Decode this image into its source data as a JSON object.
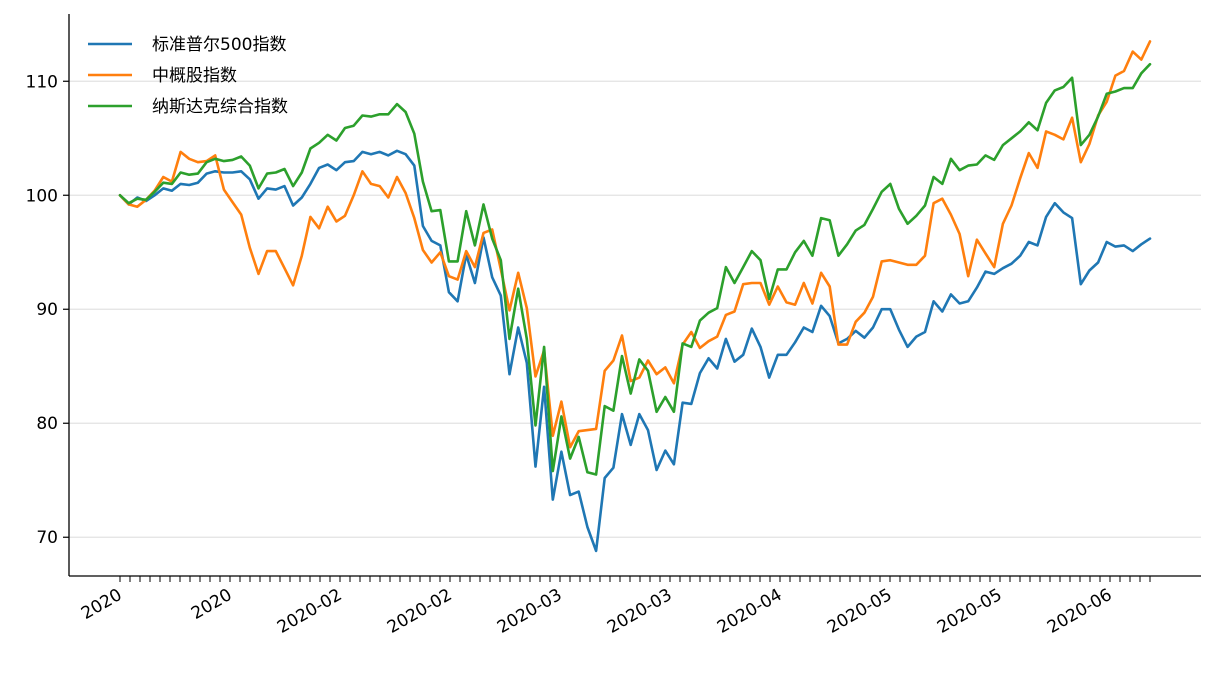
{
  "chart_data": {
    "type": "line",
    "title": "",
    "xlabel": "",
    "ylabel": "",
    "ylim": [
      66.6,
      115.9
    ],
    "yticks": [
      70,
      80,
      90,
      100,
      110
    ],
    "grid": "horizontal",
    "legend_position": "top-left",
    "x_major_labels": [
      "2020",
      "2020",
      "2020-02",
      "2020-02",
      "2020-03",
      "2020-03",
      "2020-04",
      "2020-05",
      "2020-05",
      "2020-06"
    ],
    "x_minor_tick_count": 104,
    "series": [
      {
        "name": "标准普尔500指数",
        "color": "#1f77b4",
        "values": [
          100,
          99.2,
          99.8,
          99.5,
          100,
          100.6,
          100.4,
          101,
          100.9,
          101.1,
          101.9,
          102.1,
          102,
          102,
          102.1,
          101.4,
          99.7,
          100.6,
          100.5,
          100.8,
          99.1,
          99.8,
          101,
          102.4,
          102.7,
          102.2,
          102.9,
          103,
          103.8,
          103.6,
          103.8,
          103.5,
          103.9,
          103.6,
          102.6,
          97.3,
          96,
          95.6,
          91.5,
          90.7,
          94.8,
          92.3,
          96.3,
          92.8,
          91.2,
          84.3,
          88.4,
          85.3,
          76.2,
          83.2,
          73.3,
          77.5,
          73.7,
          74,
          70.9,
          68.8,
          75.2,
          76.1,
          80.8,
          78.1,
          80.8,
          79.4,
          75.9,
          77.6,
          76.4,
          81.8,
          81.7,
          84.4,
          85.7,
          84.8,
          87.4,
          85.4,
          86,
          88.3,
          86.7,
          84,
          86,
          86,
          87.1,
          88.4,
          88,
          90.3,
          89.4,
          87,
          87.4,
          88.1,
          87.5,
          88.4,
          90,
          90,
          88.2,
          86.7,
          87.6,
          88,
          90.7,
          89.8,
          91.3,
          90.5,
          90.7,
          91.9,
          93.3,
          93.1,
          93.6,
          94,
          94.7,
          95.9,
          95.6,
          98.1,
          99.3,
          98.5,
          98,
          92.2,
          93.4,
          94.1,
          95.9,
          95.5,
          95.6,
          95.1,
          95.7,
          96.2
        ]
      },
      {
        "name": "中概股指数",
        "color": "#ff7f0e",
        "values": [
          100,
          99.2,
          99,
          99.6,
          100.4,
          101.6,
          101.2,
          103.8,
          103.2,
          102.9,
          103,
          103.5,
          100.5,
          99.4,
          98.3,
          95.4,
          93.1,
          95.1,
          95.1,
          93.6,
          92.1,
          94.7,
          98.1,
          97.1,
          99,
          97.7,
          98.2,
          100,
          102.1,
          101,
          100.8,
          99.8,
          101.6,
          100.2,
          98,
          95.2,
          94.1,
          95,
          92.9,
          92.6,
          95.1,
          93.7,
          96.7,
          97,
          93.5,
          89.9,
          93.2,
          90.1,
          84.1,
          86.4,
          78.9,
          81.9,
          77.9,
          79.3,
          79.4,
          79.5,
          84.6,
          85.5,
          87.7,
          83.7,
          84,
          85.5,
          84.3,
          84.9,
          83.5,
          86.9,
          88,
          86.6,
          87.2,
          87.6,
          89.5,
          89.8,
          92.2,
          92.3,
          92.3,
          90.4,
          92,
          90.6,
          90.4,
          92.3,
          90.5,
          93.2,
          92,
          86.9,
          86.9,
          88.9,
          89.7,
          91.1,
          94.2,
          94.3,
          94.1,
          93.9,
          93.9,
          94.7,
          99.3,
          99.7,
          98.3,
          96.6,
          92.9,
          96.1,
          94.9,
          93.7,
          97.5,
          99.1,
          101.5,
          103.7,
          102.4,
          105.6,
          105.3,
          104.9,
          106.8,
          102.9,
          104.5,
          107,
          108.2,
          110.5,
          110.9,
          112.6,
          111.9,
          113.5
        ]
      },
      {
        "name": "纳斯达克综合指数",
        "color": "#2ca02c",
        "values": [
          100,
          99.3,
          99.7,
          99.6,
          100.3,
          101.1,
          101,
          102,
          101.8,
          101.9,
          102.9,
          103.2,
          103,
          103.1,
          103.4,
          102.6,
          100.6,
          101.9,
          102,
          102.3,
          100.8,
          102,
          104.1,
          104.6,
          105.3,
          104.8,
          105.9,
          106.1,
          107,
          106.9,
          107.1,
          107.1,
          108,
          107.3,
          105.4,
          101.2,
          98.6,
          98.7,
          94.2,
          94.2,
          98.6,
          95.6,
          99.2,
          96.2,
          94.3,
          87.4,
          91.8,
          87.4,
          79.8,
          86.7,
          75.8,
          80.6,
          76.9,
          78.8,
          75.7,
          75.5,
          81.5,
          81.1,
          85.9,
          82.6,
          85.6,
          84.6,
          81,
          82.3,
          81,
          87,
          86.7,
          89,
          89.7,
          90.1,
          93.7,
          92.3,
          93.7,
          95.1,
          94.3,
          90.9,
          93.5,
          93.5,
          95,
          96,
          94.7,
          98,
          97.8,
          94.7,
          95.7,
          96.9,
          97.4,
          98.8,
          100.3,
          101,
          98.8,
          97.5,
          98.2,
          99.1,
          101.6,
          101,
          103.2,
          102.2,
          102.6,
          102.7,
          103.5,
          103.1,
          104.4,
          105,
          105.6,
          106.4,
          105.7,
          108.1,
          109.2,
          109.5,
          110.3,
          104.4,
          105.3,
          106.9,
          108.9,
          109.1,
          109.4,
          109.4,
          110.7,
          111.5
        ]
      }
    ]
  }
}
